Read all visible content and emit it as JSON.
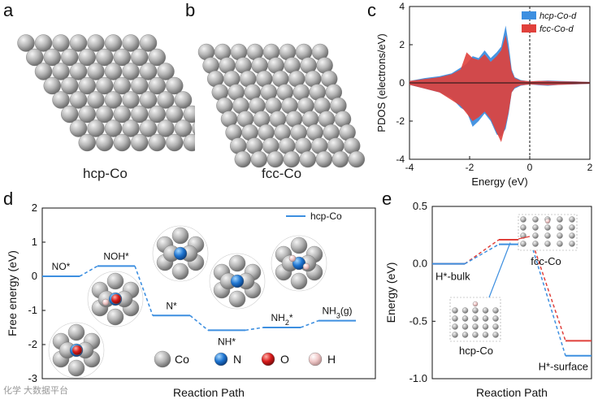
{
  "panels": {
    "a": {
      "letter": "a",
      "caption": "hcp-Co"
    },
    "b": {
      "letter": "b",
      "caption": "fcc-Co"
    },
    "c": {
      "letter": "c"
    },
    "d": {
      "letter": "d"
    },
    "e": {
      "letter": "e"
    }
  },
  "watermark": "化学 大数据平台",
  "chart_data": [
    {
      "id": "c",
      "type": "area",
      "xlabel": "Energy (eV)",
      "ylabel": "PDOS (electrons/eV)",
      "xlim": [
        -4,
        2
      ],
      "ylim": [
        -4,
        4
      ],
      "xticks": [
        -4,
        -2,
        0,
        2
      ],
      "yticks": [
        -4,
        -2,
        0,
        2,
        4
      ],
      "fermi_level": 0,
      "legend_position": "top-right",
      "series": [
        {
          "name": "hcp-Co-d",
          "color": "#3d8fe0",
          "x": [
            -4.0,
            -3.5,
            -3.0,
            -2.6,
            -2.3,
            -2.1,
            -1.9,
            -1.7,
            -1.5,
            -1.3,
            -1.1,
            -0.95,
            -0.8,
            -0.7,
            -0.6,
            -0.5,
            -0.3,
            -0.1,
            0.0,
            0.3,
            0.6,
            1.0,
            1.5,
            2.0
          ],
          "up": [
            0.1,
            0.25,
            0.35,
            0.5,
            0.8,
            1.0,
            1.4,
            1.3,
            1.7,
            1.3,
            1.6,
            1.9,
            3.0,
            2.0,
            0.7,
            0.3,
            0.15,
            0.1,
            0.08,
            0.1,
            0.12,
            0.1,
            0.08,
            0.05
          ],
          "down": [
            -0.1,
            -0.3,
            -0.5,
            -0.8,
            -1.3,
            -1.5,
            -2.3,
            -2.0,
            -1.6,
            -2.0,
            -2.7,
            -2.8,
            -2.4,
            -1.6,
            -0.5,
            -0.3,
            -0.15,
            -0.1,
            -0.08,
            -0.12,
            -0.15,
            -0.1,
            -0.08,
            -0.05
          ]
        },
        {
          "name": "fcc-Co-d",
          "color": "#e0403b",
          "x": [
            -4.0,
            -3.5,
            -3.0,
            -2.6,
            -2.3,
            -2.1,
            -1.9,
            -1.7,
            -1.5,
            -1.3,
            -1.1,
            -0.95,
            -0.8,
            -0.7,
            -0.6,
            -0.5,
            -0.3,
            -0.1,
            0.0,
            0.3,
            0.6,
            1.0,
            1.5,
            2.0
          ],
          "up": [
            0.1,
            0.2,
            0.3,
            0.45,
            0.7,
            1.6,
            1.3,
            1.2,
            1.5,
            1.1,
            1.4,
            1.7,
            2.5,
            1.6,
            0.6,
            0.25,
            0.12,
            0.1,
            0.08,
            0.1,
            0.1,
            0.08,
            0.07,
            0.05
          ],
          "down": [
            -0.1,
            -0.3,
            -0.5,
            -0.9,
            -1.2,
            -1.6,
            -2.0,
            -1.8,
            -1.5,
            -1.9,
            -2.6,
            -3.1,
            -2.2,
            -1.5,
            -0.5,
            -0.25,
            -0.12,
            -0.1,
            -0.08,
            -0.1,
            -0.12,
            -0.1,
            -0.07,
            -0.05
          ]
        }
      ]
    },
    {
      "id": "d",
      "type": "line",
      "xlabel": "Reaction Path",
      "ylabel": "Free energy (eV)",
      "ylim": [
        -3,
        2
      ],
      "yticks": [
        -3,
        -2,
        -1,
        0,
        1,
        2
      ],
      "legend": "hcp-Co",
      "legend_position": "top-right",
      "series": [
        {
          "name": "hcp-Co",
          "color": "#3d8fe0",
          "steps": [
            {
              "label": "NO*",
              "value": 0.0
            },
            {
              "label": "NOH*",
              "value": 0.3
            },
            {
              "label": "N*",
              "value": -1.15
            },
            {
              "label": "NH*",
              "value": -1.58
            },
            {
              "label": "NH2*",
              "value": -1.5
            },
            {
              "label": "NH3(g)",
              "value": -1.3
            }
          ]
        }
      ],
      "atom_legend": [
        {
          "label": "Co",
          "color": "#b0b0b0"
        },
        {
          "label": "N",
          "color": "#1e74d0"
        },
        {
          "label": "O",
          "color": "#d81a1a"
        },
        {
          "label": "H",
          "color": "#f0c8c8"
        }
      ]
    },
    {
      "id": "e",
      "type": "line",
      "xlabel": "Reaction Path",
      "ylabel": "Energy (eV)",
      "ylim": [
        -1.0,
        0.5
      ],
      "yticks": [
        -1.0,
        -0.5,
        0.0,
        0.5
      ],
      "state_labels": [
        "H*-bulk",
        "H*-surface"
      ],
      "inset_labels": [
        "fcc-Co",
        "hcp-Co"
      ],
      "series": [
        {
          "name": "fcc-Co",
          "color": "#e0403b",
          "values": [
            0.0,
            0.21,
            -0.67
          ]
        },
        {
          "name": "hcp-Co",
          "color": "#3d8fe0",
          "values": [
            0.0,
            0.17,
            -0.8
          ]
        }
      ]
    }
  ]
}
